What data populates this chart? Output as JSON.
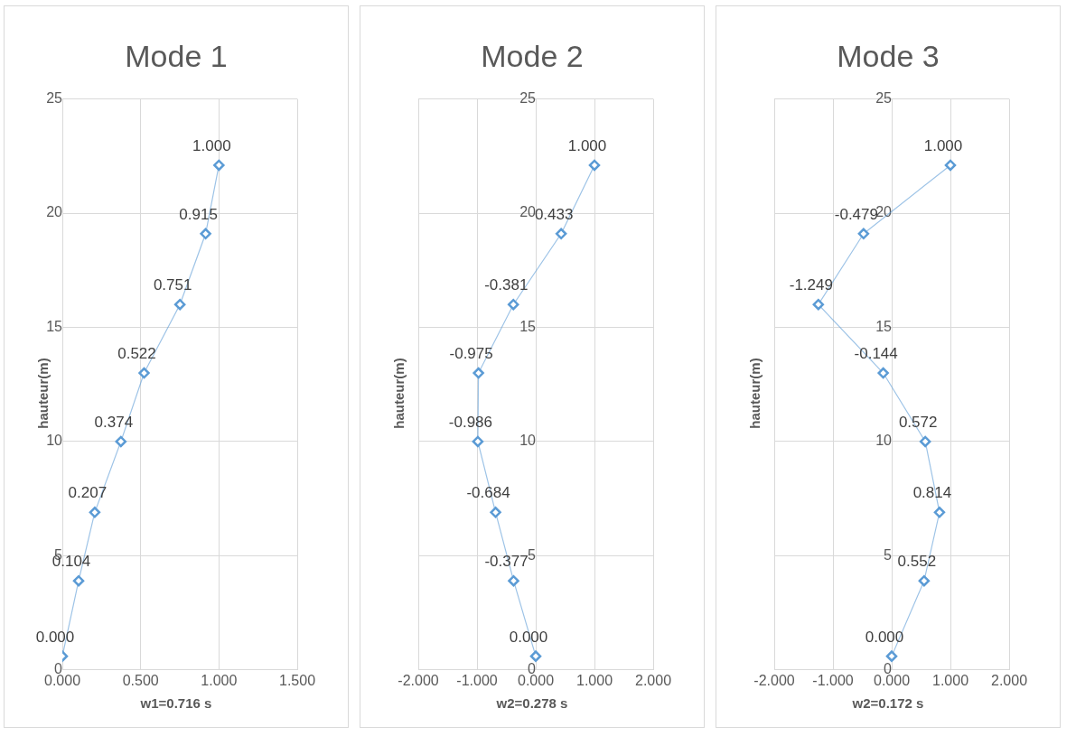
{
  "chart_data": [
    {
      "type": "line",
      "orientation": "horizontal",
      "title": "Mode 1",
      "xlabel": "w1=0.716 s",
      "ylabel": "hauteur(m)",
      "xlim": [
        0,
        1.5
      ],
      "xticks": [
        {
          "value": 0,
          "label": "0.000"
        },
        {
          "value": 0.5,
          "label": "0.500"
        },
        {
          "value": 1,
          "label": "1.000"
        },
        {
          "value": 1.5,
          "label": "1.500"
        }
      ],
      "ylim": [
        0,
        25
      ],
      "yticks": [
        0,
        5,
        10,
        15,
        20,
        25
      ],
      "grid": true,
      "marker": "diamond",
      "series": [
        {
          "color": "#5b9bd5",
          "x": [
            0.6,
            3.9,
            6.9,
            10,
            13,
            16,
            19.1,
            22.1
          ],
          "values": [
            0,
            0.104,
            0.207,
            0.374,
            0.522,
            0.751,
            0.915,
            1.0
          ],
          "value_labels": [
            "0.000",
            "0.104",
            "0.207",
            "0.374",
            "0.522",
            "0.751",
            "0.915",
            "1.000"
          ]
        }
      ]
    },
    {
      "type": "line",
      "orientation": "horizontal",
      "title": "Mode 2",
      "xlabel": "w2=0.278 s",
      "ylabel": "hauteur(m)",
      "xlim": [
        -2,
        2
      ],
      "xticks": [
        {
          "value": -2,
          "label": "-2.000"
        },
        {
          "value": -1,
          "label": "-1.000"
        },
        {
          "value": 0,
          "label": "0.000"
        },
        {
          "value": 1,
          "label": "1.000"
        },
        {
          "value": 2,
          "label": "2.000"
        }
      ],
      "ylim": [
        0,
        25
      ],
      "yticks": [
        0,
        5,
        10,
        15,
        20,
        25
      ],
      "grid": true,
      "marker": "diamond",
      "series": [
        {
          "color": "#5b9bd5",
          "x": [
            0.6,
            3.9,
            6.9,
            10,
            13,
            16,
            19.1,
            22.1
          ],
          "values": [
            0,
            -0.377,
            -0.684,
            -0.986,
            -0.975,
            -0.381,
            0.433,
            1.0
          ],
          "value_labels": [
            "0.000",
            "-0.377",
            "-0.684",
            "-0.986",
            "-0.975",
            "-0.381",
            "0.433",
            "1.000"
          ]
        }
      ]
    },
    {
      "type": "line",
      "orientation": "horizontal",
      "title": "Mode 3",
      "xlabel": "w2=0.172 s",
      "ylabel": "hauteur(m)",
      "xlim": [
        -2,
        2
      ],
      "xticks": [
        {
          "value": -2,
          "label": "-2.000"
        },
        {
          "value": -1,
          "label": "-1.000"
        },
        {
          "value": 0,
          "label": "0.000"
        },
        {
          "value": 1,
          "label": "1.000"
        },
        {
          "value": 2,
          "label": "2.000"
        }
      ],
      "ylim": [
        0,
        25
      ],
      "yticks": [
        0,
        5,
        10,
        15,
        20,
        25
      ],
      "grid": true,
      "marker": "diamond",
      "series": [
        {
          "color": "#5b9bd5",
          "x": [
            0.6,
            3.9,
            6.9,
            10,
            13,
            16,
            19.1,
            22.1
          ],
          "values": [
            0,
            0.552,
            0.814,
            0.572,
            -0.144,
            -1.249,
            -0.479,
            1.0
          ],
          "value_labels": [
            "0.000",
            "0.552",
            "0.814",
            "0.572",
            "-0.144",
            "-1.249",
            "-0.479",
            "1.000"
          ]
        }
      ]
    }
  ]
}
